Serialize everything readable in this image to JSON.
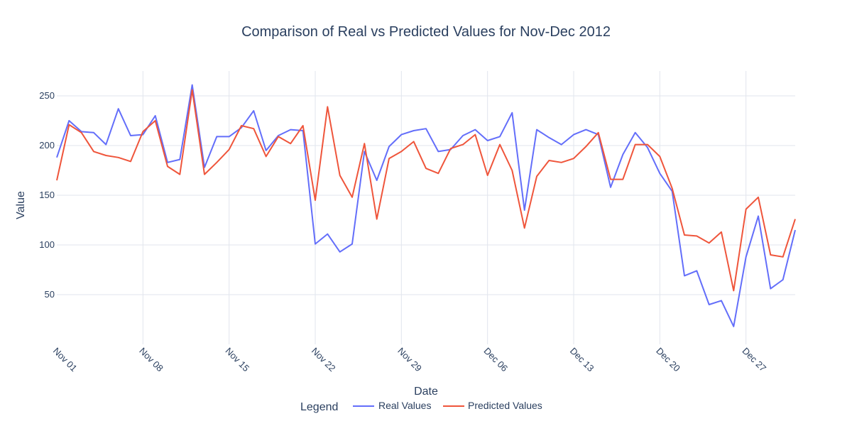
{
  "chart_data": {
    "type": "line",
    "title": "Comparison of Real vs Predicted Values for Nov-Dec 2012",
    "xlabel": "Date",
    "ylabel": "Value",
    "x_start": "2012-11-01",
    "x_end": "2012-12-31",
    "xlim": [
      "2012-11-01",
      "2012-12-31"
    ],
    "ylim": [
      0,
      275
    ],
    "grid": true,
    "x_ticks": [
      {
        "date": "2012-11-01",
        "label": "Nov 01"
      },
      {
        "date": "2012-11-08",
        "label": "Nov 08"
      },
      {
        "date": "2012-11-15",
        "label": "Nov 15"
      },
      {
        "date": "2012-11-22",
        "label": "Nov 22"
      },
      {
        "date": "2012-11-29",
        "label": "Nov 29"
      },
      {
        "date": "2012-12-06",
        "label": "Dec 06"
      },
      {
        "date": "2012-12-13",
        "label": "Dec 13"
      },
      {
        "date": "2012-12-20",
        "label": "Dec 20"
      },
      {
        "date": "2012-12-27",
        "label": "Dec 27"
      }
    ],
    "y_ticks": [
      50,
      100,
      150,
      200,
      250
    ],
    "x": [
      "2012-11-01",
      "2012-11-02",
      "2012-11-03",
      "2012-11-04",
      "2012-11-05",
      "2012-11-06",
      "2012-11-07",
      "2012-11-08",
      "2012-11-09",
      "2012-11-10",
      "2012-11-11",
      "2012-11-12",
      "2012-11-13",
      "2012-11-14",
      "2012-11-15",
      "2012-11-16",
      "2012-11-17",
      "2012-11-18",
      "2012-11-19",
      "2012-11-20",
      "2012-11-21",
      "2012-11-22",
      "2012-11-23",
      "2012-11-24",
      "2012-11-25",
      "2012-11-26",
      "2012-11-27",
      "2012-11-28",
      "2012-11-29",
      "2012-11-30",
      "2012-12-01",
      "2012-12-02",
      "2012-12-03",
      "2012-12-04",
      "2012-12-05",
      "2012-12-06",
      "2012-12-07",
      "2012-12-08",
      "2012-12-09",
      "2012-12-10",
      "2012-12-11",
      "2012-12-12",
      "2012-12-13",
      "2012-12-14",
      "2012-12-15",
      "2012-12-16",
      "2012-12-17",
      "2012-12-18",
      "2012-12-19",
      "2012-12-20",
      "2012-12-21",
      "2012-12-22",
      "2012-12-23",
      "2012-12-24",
      "2012-12-25",
      "2012-12-26",
      "2012-12-27",
      "2012-12-28",
      "2012-12-29",
      "2012-12-30",
      "2012-12-31"
    ],
    "series": [
      {
        "name": "Real Values",
        "color": "#636efa",
        "values": [
          188,
          225,
          214,
          213,
          201,
          237,
          210,
          211,
          230,
          183,
          186,
          261,
          178,
          209,
          209,
          218,
          235,
          195,
          210,
          216,
          215,
          101,
          111,
          93,
          101,
          194,
          165,
          199,
          211,
          215,
          217,
          194,
          196,
          210,
          216,
          205,
          209,
          233,
          135,
          216,
          208,
          201,
          211,
          216,
          211,
          158,
          191,
          213,
          198,
          172,
          154,
          69,
          74,
          40,
          44,
          18,
          88,
          129,
          56,
          65,
          115
        ]
      },
      {
        "name": "Predicted Values",
        "color": "#ef553b",
        "values": [
          165,
          221,
          213,
          194,
          190,
          188,
          184,
          214,
          225,
          179,
          171,
          256,
          171,
          183,
          196,
          220,
          217,
          189,
          209,
          202,
          220,
          145,
          239,
          170,
          148,
          202,
          126,
          187,
          194,
          204,
          177,
          172,
          197,
          201,
          211,
          170,
          201,
          175,
          117,
          169,
          185,
          183,
          187,
          199,
          213,
          166,
          166,
          201,
          201,
          189,
          157,
          110,
          109,
          102,
          113,
          54,
          136,
          148,
          90,
          88,
          126
        ]
      }
    ],
    "legend": {
      "title": "Legend",
      "placement": "bottom-center",
      "orientation": "horizontal"
    }
  }
}
